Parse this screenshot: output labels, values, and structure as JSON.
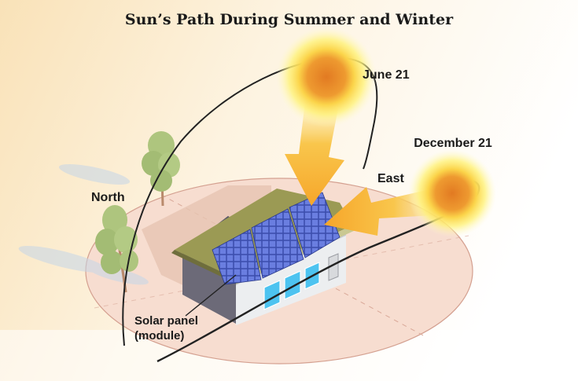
{
  "title": "Sun’s Path During Summer and Winter",
  "labels": {
    "june": "June 21",
    "december": "December 21",
    "east": "East",
    "north": "North",
    "solar_panel": "Solar panel (module)"
  },
  "colors": {
    "background_glow": "#fbe9c8",
    "ground_fill": "#f7ddd0",
    "ground_stroke": "#d9a898",
    "sun_core": "#e8872a",
    "sun_glow": "#fff07a",
    "arrow": "#f8b53c",
    "roof": "#9a9a52",
    "panel": "#4a5fc7",
    "wall_dark": "#6c6a78",
    "wall_light": "#e9eaec",
    "window": "#4dc3f0",
    "tree_leaf": "#a6c07a",
    "path_line": "#222222"
  }
}
